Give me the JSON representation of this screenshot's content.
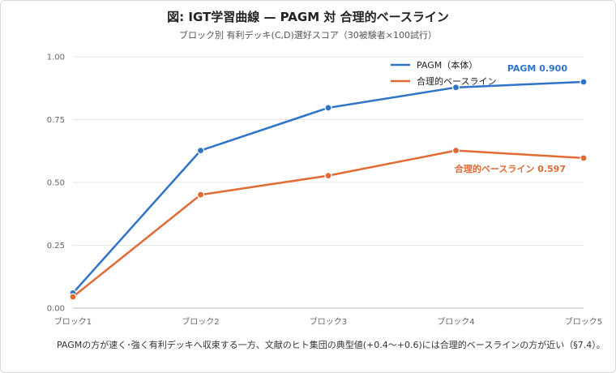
{
  "title": "図: IGT学習曲線 — PAGM 対 合理的ベースライン",
  "subtitle": "ブロック別 有利デッキ(C,D)選好スコア（30被験者×100試行）",
  "caption": "PAGMの方が速く･強く有利デッキへ収束する一方、文献のヒト集団の典型値(+0.4〜+0.6)には合理的ベースラインの方が近い（§7.4）。",
  "chart_data": {
    "type": "line",
    "categories": [
      "ブロック1",
      "ブロック2",
      "ブロック3",
      "ブロック4",
      "ブロック5"
    ],
    "series": [
      {
        "name": "PAGM（本体）",
        "color": "#2f74c9",
        "values": [
          0.06,
          0.627,
          0.797,
          0.878,
          0.9
        ]
      },
      {
        "name": "合理的ベースライン",
        "color": "#e26b34",
        "values": [
          0.045,
          0.451,
          0.527,
          0.627,
          0.597
        ]
      }
    ],
    "ylim": [
      0,
      1
    ],
    "yticks": [
      "0.00",
      "0.25",
      "0.50",
      "0.75",
      "1.00"
    ],
    "grid": true,
    "legend_position": "top-right",
    "annotations": [
      {
        "series": 0,
        "text": "PAGM 0.900"
      },
      {
        "series": 1,
        "text": "合理的ベースライン 0.597"
      }
    ]
  }
}
